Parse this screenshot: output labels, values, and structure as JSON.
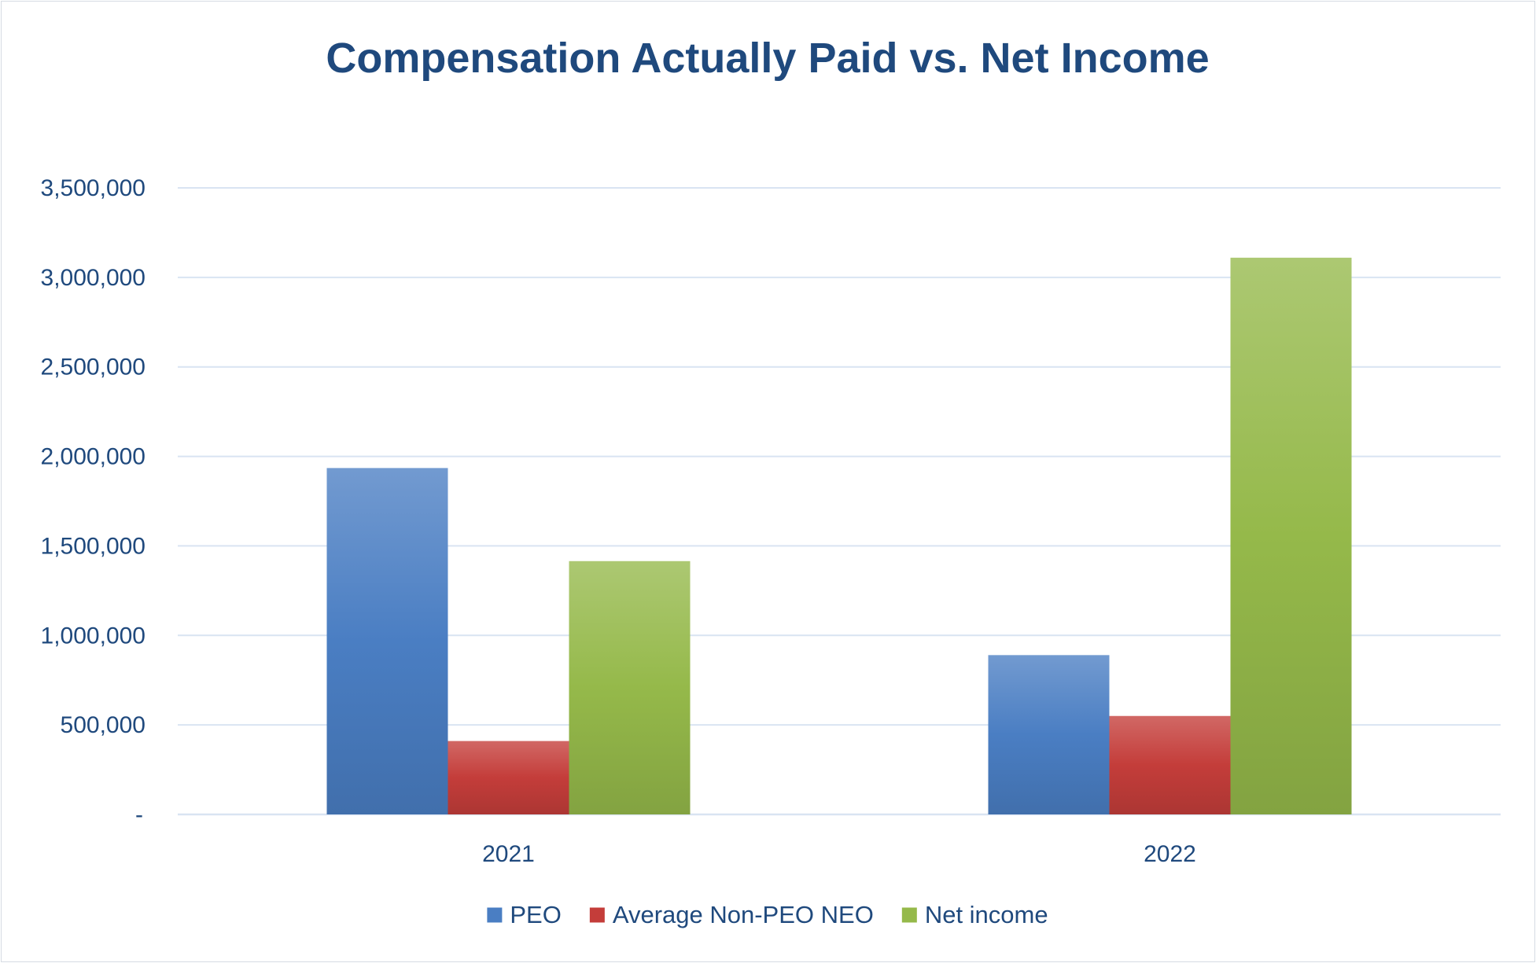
{
  "chart_data": {
    "type": "bar",
    "title": "Compensation Actually Paid vs. Net Income",
    "xlabel": "",
    "ylabel": "",
    "categories": [
      "2021",
      "2022"
    ],
    "series": [
      {
        "name": "PEO",
        "values": [
          1935000,
          890000
        ],
        "color": "#4a7ec3"
      },
      {
        "name": "Average Non-PEO NEO",
        "values": [
          410000,
          550000
        ],
        "color": "#c43d3a"
      },
      {
        "name": "Net income",
        "values": [
          1415000,
          3110000
        ],
        "color": "#95b94a"
      }
    ],
    "ylim": [
      0,
      3500000
    ],
    "yticks": [
      0,
      500000,
      1000000,
      1500000,
      2000000,
      2500000,
      3000000,
      3500000
    ],
    "ytick_labels": [
      "-",
      "500,000",
      "1,000,000",
      "1,500,000",
      "2,000,000",
      "2,500,000",
      "3,000,000",
      "3,500,000"
    ],
    "grid": true,
    "legend": "bottom",
    "colors": {
      "title": "#1f497d",
      "axis_text": "#1f497d",
      "grid": "#d9e4f2"
    }
  }
}
